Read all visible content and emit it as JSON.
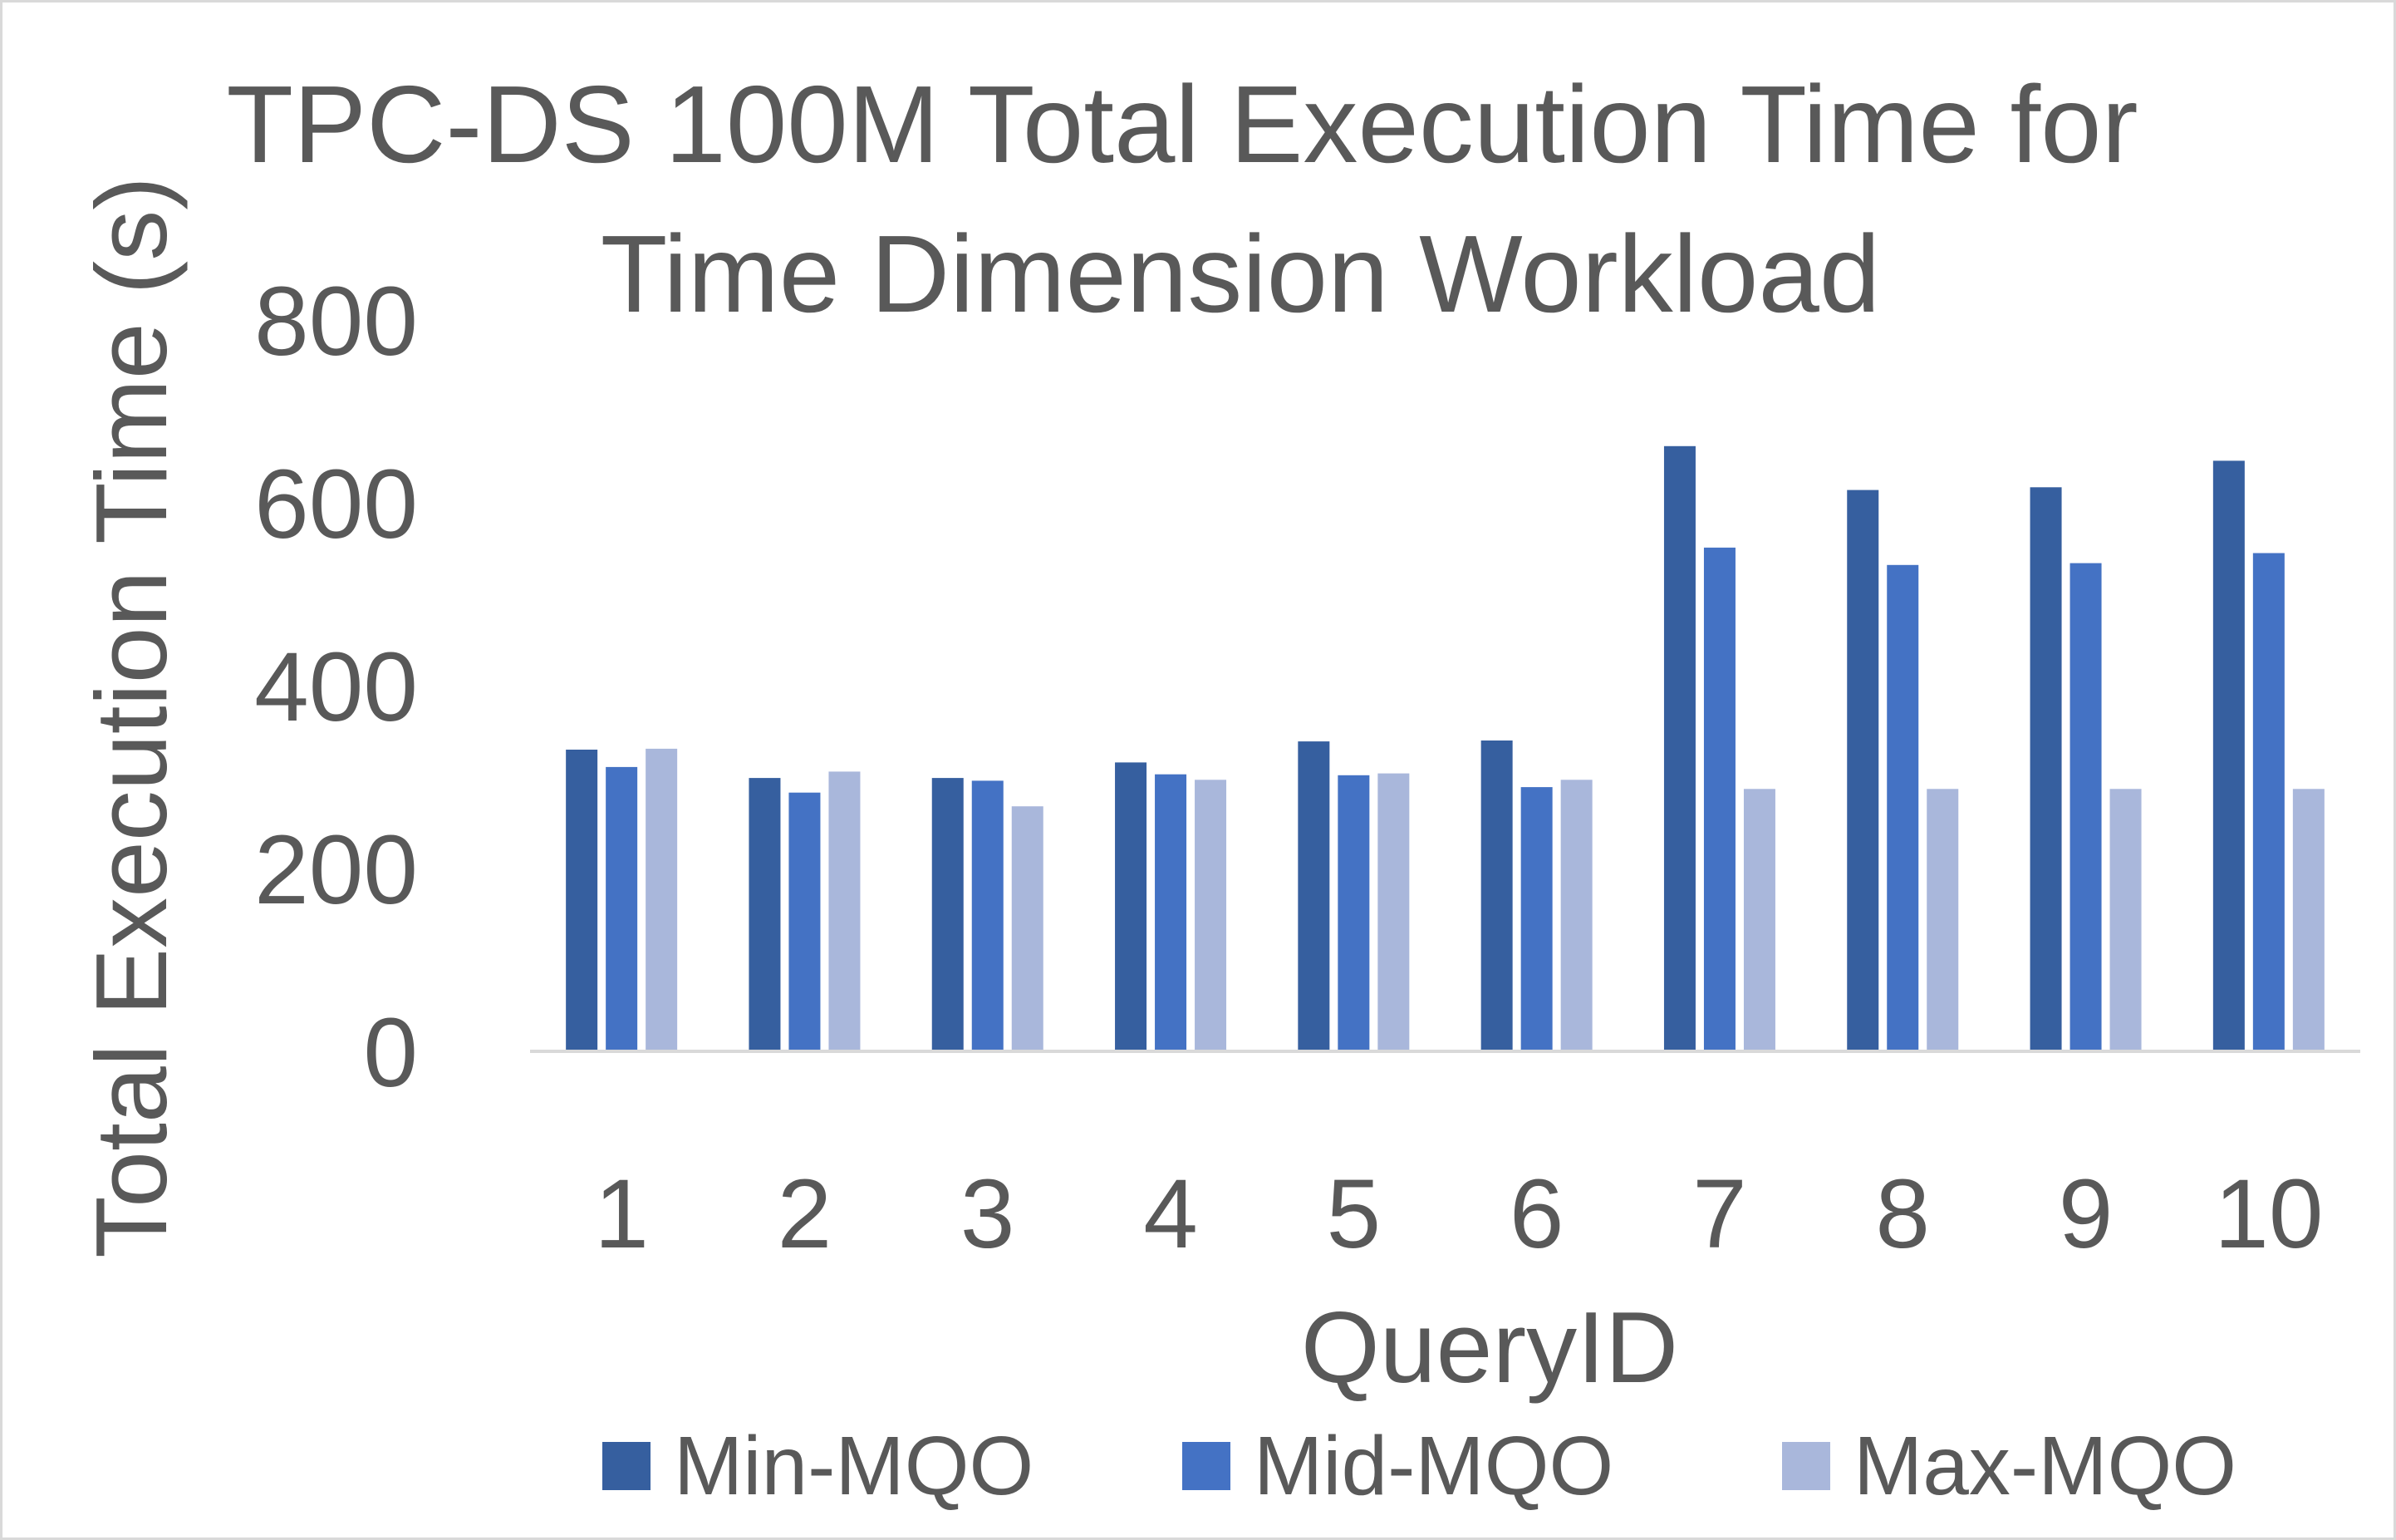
{
  "chart_data": {
    "type": "bar",
    "title": "TPC-DS 100M Total Execution Time for Time Dimension Workload",
    "title_lines": [
      "TPC-DS 100M Total Execution Time for",
      "Time Dimension Workload"
    ],
    "xlabel": "QueryID",
    "ylabel": "Total Execution Time (s)",
    "ylim": [
      0,
      800
    ],
    "yticks": [
      0,
      200,
      400,
      600,
      800
    ],
    "categories": [
      "1",
      "2",
      "3",
      "4",
      "5",
      "6",
      "7",
      "8",
      "9",
      "10"
    ],
    "series": [
      {
        "name": "Min-MQO",
        "color": "#365f9f",
        "values": [
          330,
          299,
          299,
          316,
          339,
          340,
          662,
          614,
          617,
          646
        ]
      },
      {
        "name": "Mid-MQO",
        "color": "#4472c4",
        "values": [
          311,
          283,
          296,
          303,
          302,
          289,
          551,
          532,
          534,
          545
        ]
      },
      {
        "name": "Max-MQO",
        "color": "#a9b7db",
        "values": [
          331,
          306,
          268,
          297,
          304,
          297,
          287,
          287,
          287,
          287
        ]
      }
    ],
    "grid": false,
    "legend_position": "bottom"
  }
}
